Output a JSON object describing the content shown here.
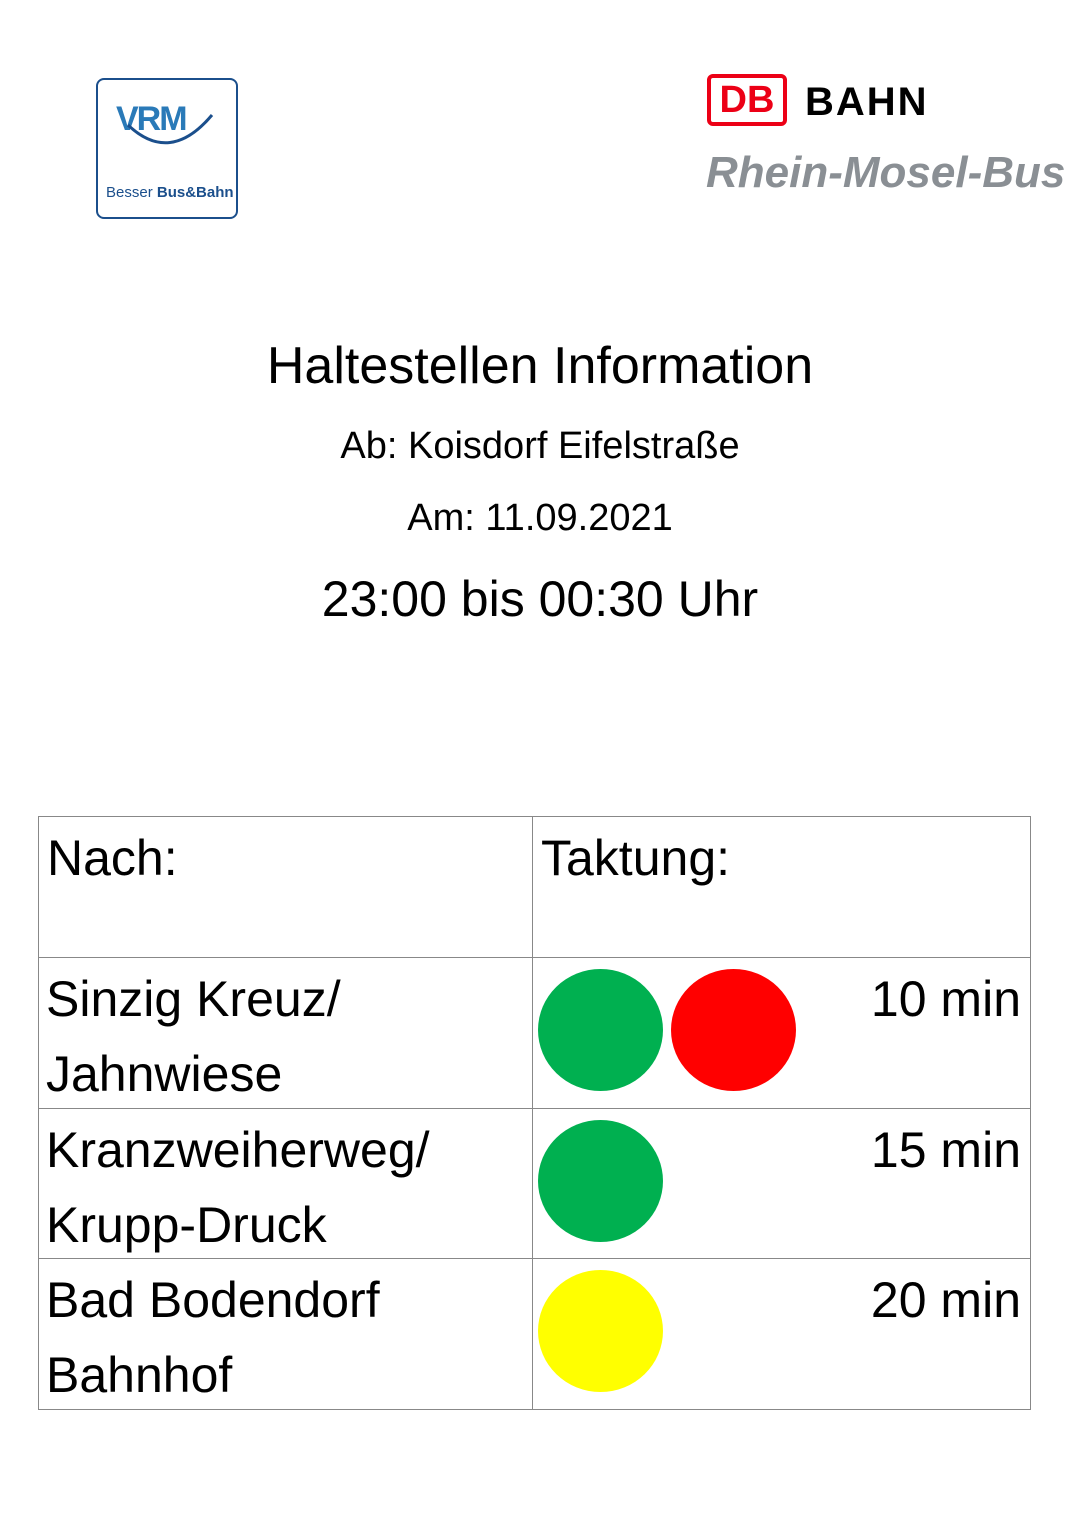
{
  "logos": {
    "vrm": {
      "mark": "VRM",
      "tagline_regular": "Besser",
      "tagline_bold": "Bus&Bahn"
    },
    "db": {
      "mark": "DB",
      "word": "BAHN",
      "subtitle": "Rhein-Mosel-Bus"
    }
  },
  "header": {
    "title": "Haltestellen Information",
    "from": "Ab: Koisdorf Eifelstraße",
    "date": "Am: 11.09.2021",
    "time": "23:00 bis 00:30 Uhr"
  },
  "table": {
    "columns": [
      "Nach:",
      "Taktung:"
    ],
    "rows": [
      {
        "destination": [
          "Sinzig Kreuz/",
          "Jahnwiese"
        ],
        "dots": [
          "#00b050",
          "#ff0000"
        ],
        "interval": "10 min"
      },
      {
        "destination": [
          "Kranzweiherweg/",
          "Krupp-Druck"
        ],
        "dots": [
          "#00b050"
        ],
        "interval": "15 min"
      },
      {
        "destination": [
          "Bad Bodendorf",
          "Bahnhof"
        ],
        "dots": [
          "#ffff00"
        ],
        "interval": "20 min"
      }
    ]
  }
}
